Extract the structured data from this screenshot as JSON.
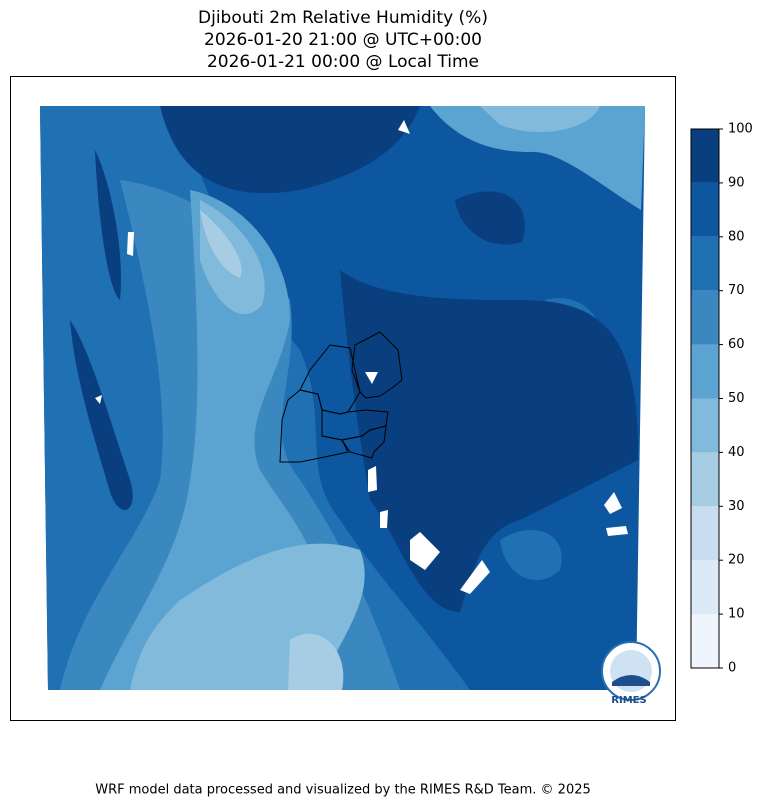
{
  "title": [
    "Djibouti 2m Relative Humidity (%)",
    "2026-01-20 21:00 @ UTC+00:00",
    "2026-01-21 00:00 @ Local Time"
  ],
  "colorbar": {
    "levels": [
      0,
      10,
      20,
      30,
      40,
      50,
      60,
      70,
      80,
      90,
      100
    ],
    "colors": [
      "#eef5fc",
      "#dce9f6",
      "#c9ddf0",
      "#a6cde3",
      "#82badb",
      "#5ba3d0",
      "#3b87c0",
      "#2070b4",
      "#0d57a1",
      "#0a3f7f"
    ]
  },
  "logo": "RIMES",
  "footer": "WRF model data processed and visualized by the RIMES R&D Team. © 2025"
}
